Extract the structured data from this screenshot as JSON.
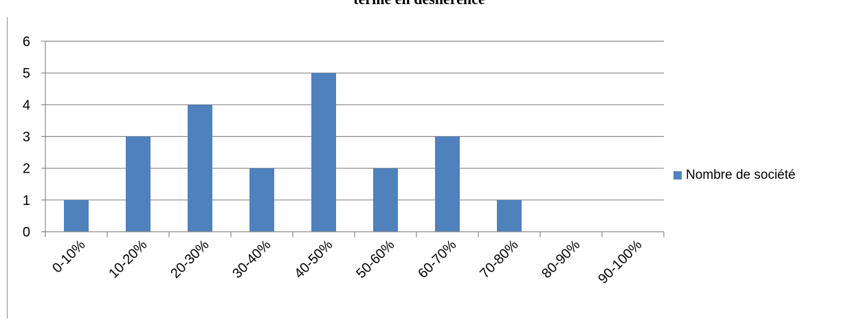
{
  "chart_data": {
    "type": "bar",
    "title": "terme en déshérence",
    "categories": [
      "0-10%",
      "10-20%",
      "20-30%",
      "30-40%",
      "40-50%",
      "50-60%",
      "60-70%",
      "70-80%",
      "80-90%",
      "90-100%"
    ],
    "series": [
      {
        "name": "Nombre de société",
        "values": [
          1,
          3,
          4,
          2,
          5,
          2,
          3,
          1,
          0,
          0
        ]
      }
    ],
    "ylim": [
      0,
      6
    ],
    "yticks": [
      "0",
      "1",
      "2",
      "3",
      "4",
      "5",
      "6"
    ],
    "xlabel": "",
    "ylabel": "",
    "grid": true,
    "legend_position": "right",
    "colors": {
      "bar": "#4f81bd",
      "grid": "#888888",
      "axis": "#888888"
    }
  }
}
